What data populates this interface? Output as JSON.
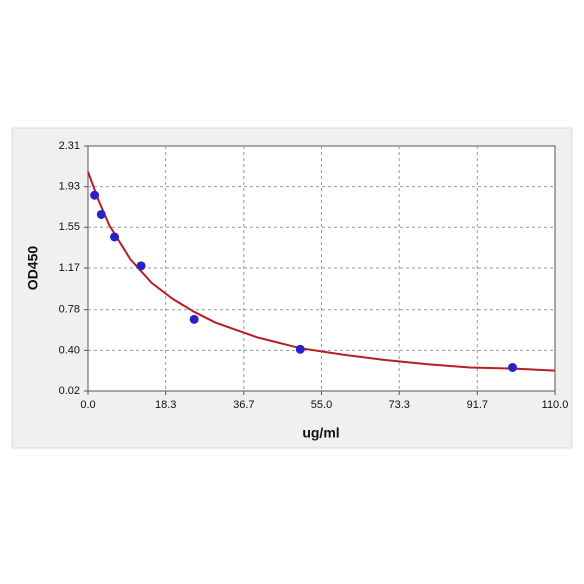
{
  "chart_data": {
    "type": "scatter",
    "xlabel": "ug/ml",
    "ylabel": "OD450",
    "xlim": [
      0,
      110
    ],
    "ylim": [
      0.02,
      2.31
    ],
    "xticks": [
      {
        "value": 0,
        "label": "0.0"
      },
      18.3,
      36.7,
      {
        "value": 55,
        "label": "55.0"
      },
      73.3,
      91.7,
      {
        "value": 110,
        "label": "110.0"
      }
    ],
    "yticks": [
      0.02,
      {
        "value": 0.4,
        "label": "0.40"
      },
      0.78,
      1.17,
      1.55,
      1.93,
      2.31
    ],
    "grid": true,
    "series": [
      {
        "type": "scatter",
        "color": "#2a22c8",
        "x": [
          1.5625,
          3.125,
          6.25,
          12.5,
          25,
          50,
          100
        ],
        "values": [
          1.85,
          1.67,
          1.46,
          1.19,
          0.69,
          0.41,
          0.24
        ]
      },
      {
        "type": "line",
        "color": "#b51f24",
        "x": [
          0,
          2.5,
          5,
          10,
          15,
          20,
          25,
          30,
          40,
          50,
          60,
          70,
          80,
          90,
          100,
          110
        ],
        "values": [
          2.07,
          1.8,
          1.57,
          1.25,
          1.03,
          0.88,
          0.76,
          0.66,
          0.52,
          0.42,
          0.36,
          0.31,
          0.27,
          0.24,
          0.23,
          0.21
        ]
      }
    ]
  }
}
